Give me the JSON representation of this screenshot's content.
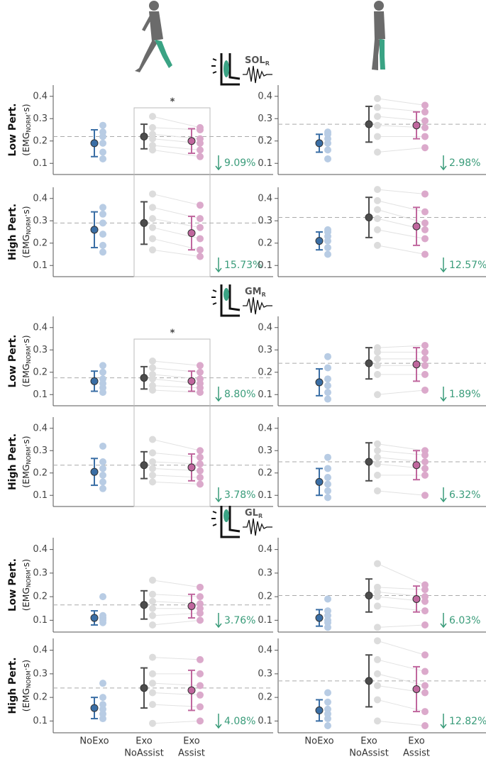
{
  "categories": [
    [
      "NoExo"
    ],
    [
      "Exo",
      "NoAssist"
    ],
    [
      "Exo",
      "Assist"
    ]
  ],
  "row_labels": [
    "Low Pert.",
    "High Pert."
  ],
  "ylabel_unit": [
    "(EMG",
    "NORM",
    "·s)"
  ],
  "muscles": [
    {
      "name": "SOL",
      "sub": "R",
      "significance": "*"
    },
    {
      "name": "GM",
      "sub": "R",
      "significance": "*"
    },
    {
      "name": "GL",
      "sub": "R"
    }
  ],
  "chart_data": [
    {
      "type": "errorbar",
      "ylim": [
        0.05,
        0.45
      ],
      "yticks": [
        0.1,
        0.2,
        0.3,
        0.4
      ],
      "annotation": "9.09%",
      "series": [
        {
          "color": "#3a6ea5",
          "point_color": "#b8cce4",
          "mean": 0.19,
          "error": 0.06,
          "points": [
            0.12,
            0.15,
            0.19,
            0.22,
            0.24,
            0.27
          ]
        },
        {
          "color": "#4d4d4d",
          "point_color": "#dcdcdc",
          "mean": 0.22,
          "error": 0.055,
          "points": [
            0.16,
            0.18,
            0.21,
            0.23,
            0.26,
            0.31
          ]
        },
        {
          "color": "#c0679e",
          "point_color": "#dba9cb",
          "mean": 0.2,
          "error": 0.055,
          "points": [
            0.13,
            0.16,
            0.19,
            0.21,
            0.25,
            0.26
          ]
        }
      ]
    },
    {
      "type": "errorbar",
      "ylim": [
        0.05,
        0.45
      ],
      "yticks": [
        0.1,
        0.2,
        0.3,
        0.4
      ],
      "annotation": "2.98%",
      "series": [
        {
          "color": "#3a6ea5",
          "point_color": "#b8cce4",
          "mean": 0.19,
          "error": 0.04,
          "points": [
            0.12,
            0.16,
            0.19,
            0.21,
            0.23,
            0.24
          ]
        },
        {
          "color": "#4d4d4d",
          "point_color": "#dcdcdc",
          "mean": 0.275,
          "error": 0.08,
          "points": [
            0.15,
            0.22,
            0.27,
            0.31,
            0.35,
            0.39
          ]
        },
        {
          "color": "#c0679e",
          "point_color": "#dba9cb",
          "mean": 0.27,
          "error": 0.06,
          "points": [
            0.17,
            0.22,
            0.26,
            0.29,
            0.33,
            0.36
          ]
        }
      ]
    },
    {
      "type": "errorbar",
      "ylim": [
        0.05,
        0.45
      ],
      "yticks": [
        0.1,
        0.2,
        0.3,
        0.4
      ],
      "annotation": "15.73%",
      "series": [
        {
          "color": "#3a6ea5",
          "point_color": "#b8cce4",
          "mean": 0.26,
          "error": 0.08,
          "points": [
            0.16,
            0.19,
            0.24,
            0.29,
            0.33,
            0.36
          ]
        },
        {
          "color": "#4d4d4d",
          "point_color": "#dcdcdc",
          "mean": 0.29,
          "error": 0.095,
          "points": [
            0.17,
            0.22,
            0.27,
            0.31,
            0.36,
            0.42
          ]
        },
        {
          "color": "#c0679e",
          "point_color": "#dba9cb",
          "mean": 0.245,
          "error": 0.075,
          "points": [
            0.14,
            0.17,
            0.22,
            0.27,
            0.31,
            0.37
          ]
        }
      ]
    },
    {
      "type": "errorbar",
      "ylim": [
        0.05,
        0.45
      ],
      "yticks": [
        0.1,
        0.2,
        0.3,
        0.4
      ],
      "annotation": "12.57%",
      "series": [
        {
          "color": "#3a6ea5",
          "point_color": "#b8cce4",
          "mean": 0.21,
          "error": 0.04,
          "points": [
            0.15,
            0.18,
            0.21,
            0.23,
            0.25,
            0.26
          ]
        },
        {
          "color": "#4d4d4d",
          "point_color": "#dcdcdc",
          "mean": 0.315,
          "error": 0.09,
          "points": [
            0.19,
            0.26,
            0.31,
            0.35,
            0.39,
            0.44
          ]
        },
        {
          "color": "#c0679e",
          "point_color": "#dba9cb",
          "mean": 0.275,
          "error": 0.085,
          "points": [
            0.15,
            0.22,
            0.26,
            0.29,
            0.34,
            0.42
          ]
        }
      ]
    },
    {
      "type": "errorbar",
      "ylim": [
        0.05,
        0.45
      ],
      "yticks": [
        0.1,
        0.2,
        0.3,
        0.4
      ],
      "annotation": "8.80%",
      "series": [
        {
          "color": "#3a6ea5",
          "point_color": "#b8cce4",
          "mean": 0.16,
          "error": 0.045,
          "points": [
            0.11,
            0.13,
            0.15,
            0.17,
            0.2,
            0.23
          ]
        },
        {
          "color": "#4d4d4d",
          "point_color": "#dcdcdc",
          "mean": 0.175,
          "error": 0.05,
          "points": [
            0.12,
            0.14,
            0.17,
            0.19,
            0.22,
            0.25
          ]
        },
        {
          "color": "#c0679e",
          "point_color": "#dba9cb",
          "mean": 0.16,
          "error": 0.045,
          "points": [
            0.11,
            0.13,
            0.15,
            0.17,
            0.2,
            0.23
          ]
        }
      ]
    },
    {
      "type": "errorbar",
      "ylim": [
        0.05,
        0.45
      ],
      "yticks": [
        0.1,
        0.2,
        0.3,
        0.4
      ],
      "annotation": "1.89%",
      "series": [
        {
          "color": "#3a6ea5",
          "point_color": "#b8cce4",
          "mean": 0.155,
          "error": 0.06,
          "points": [
            0.08,
            0.11,
            0.14,
            0.17,
            0.22,
            0.27
          ]
        },
        {
          "color": "#4d4d4d",
          "point_color": "#dcdcdc",
          "mean": 0.24,
          "error": 0.07,
          "points": [
            0.1,
            0.19,
            0.23,
            0.26,
            0.29,
            0.31
          ]
        },
        {
          "color": "#c0679e",
          "point_color": "#dba9cb",
          "mean": 0.235,
          "error": 0.075,
          "points": [
            0.12,
            0.19,
            0.23,
            0.26,
            0.29,
            0.32
          ]
        }
      ]
    },
    {
      "type": "errorbar",
      "ylim": [
        0.05,
        0.45
      ],
      "yticks": [
        0.1,
        0.2,
        0.3,
        0.4
      ],
      "annotation": "3.78%",
      "series": [
        {
          "color": "#3a6ea5",
          "point_color": "#b8cce4",
          "mean": 0.205,
          "error": 0.06,
          "points": [
            0.13,
            0.16,
            0.19,
            0.22,
            0.25,
            0.32
          ]
        },
        {
          "color": "#4d4d4d",
          "point_color": "#dcdcdc",
          "mean": 0.235,
          "error": 0.06,
          "points": [
            0.16,
            0.19,
            0.22,
            0.25,
            0.29,
            0.35
          ]
        },
        {
          "color": "#c0679e",
          "point_color": "#dba9cb",
          "mean": 0.225,
          "error": 0.06,
          "points": [
            0.15,
            0.18,
            0.21,
            0.24,
            0.27,
            0.3
          ]
        }
      ]
    },
    {
      "type": "errorbar",
      "ylim": [
        0.05,
        0.45
      ],
      "yticks": [
        0.1,
        0.2,
        0.3,
        0.4
      ],
      "annotation": "6.32%",
      "series": [
        {
          "color": "#3a6ea5",
          "point_color": "#b8cce4",
          "mean": 0.16,
          "error": 0.06,
          "points": [
            0.09,
            0.12,
            0.15,
            0.18,
            0.22,
            0.27
          ]
        },
        {
          "color": "#4d4d4d",
          "point_color": "#dcdcdc",
          "mean": 0.25,
          "error": 0.085,
          "points": [
            0.12,
            0.19,
            0.24,
            0.27,
            0.3,
            0.33
          ]
        },
        {
          "color": "#c0679e",
          "point_color": "#dba9cb",
          "mean": 0.235,
          "error": 0.065,
          "points": [
            0.1,
            0.19,
            0.22,
            0.25,
            0.28,
            0.3
          ]
        }
      ]
    },
    {
      "type": "errorbar",
      "ylim": [
        0.05,
        0.45
      ],
      "yticks": [
        0.1,
        0.2,
        0.3,
        0.4
      ],
      "annotation": "3.76%",
      "series": [
        {
          "color": "#3a6ea5",
          "point_color": "#b8cce4",
          "mean": 0.11,
          "error": 0.03,
          "points": [
            0.09,
            0.1,
            0.11,
            0.11,
            0.12,
            0.2
          ]
        },
        {
          "color": "#4d4d4d",
          "point_color": "#dcdcdc",
          "mean": 0.165,
          "error": 0.06,
          "points": [
            0.08,
            0.12,
            0.15,
            0.18,
            0.21,
            0.27
          ]
        },
        {
          "color": "#c0679e",
          "point_color": "#dba9cb",
          "mean": 0.16,
          "error": 0.05,
          "points": [
            0.1,
            0.13,
            0.15,
            0.17,
            0.2,
            0.24
          ]
        }
      ]
    },
    {
      "type": "errorbar",
      "ylim": [
        0.05,
        0.45
      ],
      "yticks": [
        0.1,
        0.2,
        0.3,
        0.4
      ],
      "annotation": "6.03%",
      "series": [
        {
          "color": "#3a6ea5",
          "point_color": "#b8cce4",
          "mean": 0.11,
          "error": 0.035,
          "points": [
            0.07,
            0.09,
            0.1,
            0.12,
            0.14,
            0.19
          ]
        },
        {
          "color": "#4d4d4d",
          "point_color": "#dcdcdc",
          "mean": 0.205,
          "error": 0.07,
          "points": [
            0.07,
            0.16,
            0.2,
            0.22,
            0.24,
            0.34
          ]
        },
        {
          "color": "#c0679e",
          "point_color": "#dba9cb",
          "mean": 0.19,
          "error": 0.055,
          "points": [
            0.08,
            0.14,
            0.18,
            0.2,
            0.23,
            0.25
          ]
        }
      ]
    },
    {
      "type": "errorbar",
      "ylim": [
        0.05,
        0.45
      ],
      "yticks": [
        0.1,
        0.2,
        0.3,
        0.4
      ],
      "annotation": "4.08%",
      "series": [
        {
          "color": "#3a6ea5",
          "point_color": "#b8cce4",
          "mean": 0.155,
          "error": 0.045,
          "points": [
            0.11,
            0.13,
            0.15,
            0.17,
            0.2,
            0.26
          ]
        },
        {
          "color": "#4d4d4d",
          "point_color": "#dcdcdc",
          "mean": 0.24,
          "error": 0.085,
          "points": [
            0.09,
            0.17,
            0.22,
            0.26,
            0.3,
            0.37
          ]
        },
        {
          "color": "#c0679e",
          "point_color": "#dba9cb",
          "mean": 0.23,
          "error": 0.085,
          "points": [
            0.1,
            0.16,
            0.21,
            0.25,
            0.3,
            0.36
          ]
        }
      ]
    },
    {
      "type": "errorbar",
      "ylim": [
        0.05,
        0.45
      ],
      "yticks": [
        0.1,
        0.2,
        0.3,
        0.4
      ],
      "annotation": "12.82%",
      "series": [
        {
          "color": "#3a6ea5",
          "point_color": "#b8cce4",
          "mean": 0.145,
          "error": 0.045,
          "points": [
            0.08,
            0.11,
            0.13,
            0.15,
            0.18,
            0.22
          ]
        },
        {
          "color": "#4d4d4d",
          "point_color": "#dcdcdc",
          "mean": 0.27,
          "error": 0.11,
          "points": [
            0.1,
            0.19,
            0.25,
            0.3,
            0.36,
            0.44
          ]
        },
        {
          "color": "#c0679e",
          "point_color": "#dba9cb",
          "mean": 0.235,
          "error": 0.095,
          "points": [
            0.08,
            0.14,
            0.22,
            0.25,
            0.31,
            0.38
          ]
        }
      ]
    }
  ]
}
